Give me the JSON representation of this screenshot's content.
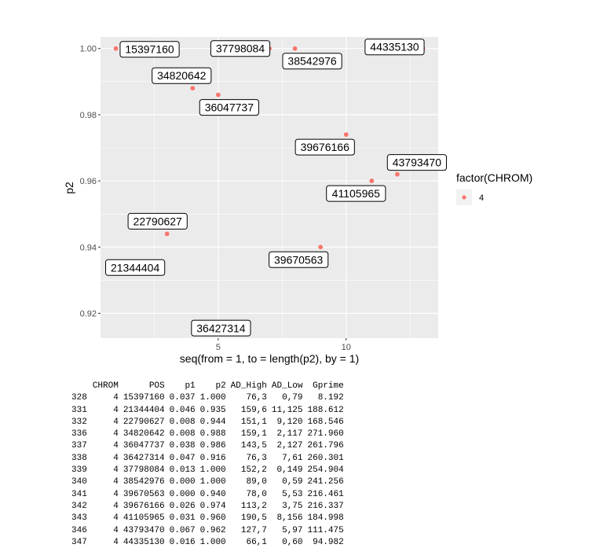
{
  "chart_data": {
    "type": "scatter",
    "x": [
      1,
      2,
      3,
      4,
      5,
      6,
      7,
      8,
      9,
      10,
      11,
      12,
      13
    ],
    "y": [
      1.0,
      0.935,
      0.944,
      0.988,
      0.986,
      0.916,
      1.0,
      1.0,
      0.94,
      0.974,
      0.96,
      0.962,
      1.0
    ],
    "point_labels": [
      "15397160",
      "21344404",
      "22790627",
      "34820642",
      "36047737",
      "36427314",
      "37798084",
      "38542976",
      "39670563",
      "39676166",
      "41105965",
      "43793470",
      "44335130"
    ],
    "xlabel": "seq(from = 1, to = length(p2), by = 1)",
    "ylabel": "p2",
    "xlim": [
      0.4,
      13.6
    ],
    "ylim": [
      0.9125,
      1.0035
    ],
    "x_ticks": [
      5,
      10
    ],
    "x_minor_ticks": [
      2.5,
      7.5,
      12.5
    ],
    "y_ticks": [
      0.92,
      0.94,
      0.96,
      0.98,
      1.0
    ],
    "y_tick_labels": [
      "0.92",
      "0.94",
      "0.96",
      "0.98",
      "1.00"
    ],
    "y_minor_ticks": [
      0.93,
      0.95,
      0.97,
      0.99
    ],
    "grid": true,
    "legend": {
      "title": "factor(CHROM)",
      "entries": [
        "4"
      ],
      "placement": "right"
    },
    "colors": {
      "point": "#F8766D",
      "panel": "#EBEBEB",
      "grid": "#FFFFFF"
    }
  },
  "table": {
    "columns": [
      "",
      "CHROM",
      "POS",
      "p1",
      "p2",
      "AD_High",
      "AD_Low",
      "Gprime"
    ],
    "rows": [
      [
        "328",
        "4",
        "15397160",
        "0.037",
        "1.000",
        "76,3",
        "0,79",
        "8.192"
      ],
      [
        "331",
        "4",
        "21344404",
        "0.046",
        "0.935",
        "159,6",
        "11,125",
        "188.612"
      ],
      [
        "332",
        "4",
        "22790627",
        "0.008",
        "0.944",
        "151,1",
        "9,120",
        "168.546"
      ],
      [
        "336",
        "4",
        "34820642",
        "0.008",
        "0.988",
        "159,1",
        "2,117",
        "271.960"
      ],
      [
        "337",
        "4",
        "36047737",
        "0.038",
        "0.986",
        "143,5",
        "2,127",
        "261.796"
      ],
      [
        "338",
        "4",
        "36427314",
        "0.047",
        "0.916",
        "76,3",
        "7,61",
        "260.301"
      ],
      [
        "339",
        "4",
        "37798084",
        "0.013",
        "1.000",
        "152,2",
        "0,149",
        "254.904"
      ],
      [
        "340",
        "4",
        "38542976",
        "0.000",
        "1.000",
        "89,0",
        "0,59",
        "241.256"
      ],
      [
        "341",
        "4",
        "39670563",
        "0.000",
        "0.940",
        "78,0",
        "5,53",
        "216.461"
      ],
      [
        "342",
        "4",
        "39676166",
        "0.026",
        "0.974",
        "113,2",
        "3,75",
        "216.337"
      ],
      [
        "343",
        "4",
        "41105965",
        "0.031",
        "0.960",
        "190,5",
        "8,156",
        "184.998"
      ],
      [
        "346",
        "4",
        "43793470",
        "0.067",
        "0.962",
        "127,7",
        "5,97",
        "111.475"
      ],
      [
        "347",
        "4",
        "44335130",
        "0.016",
        "1.000",
        "66,1",
        "0,60",
        "94.982"
      ]
    ]
  }
}
